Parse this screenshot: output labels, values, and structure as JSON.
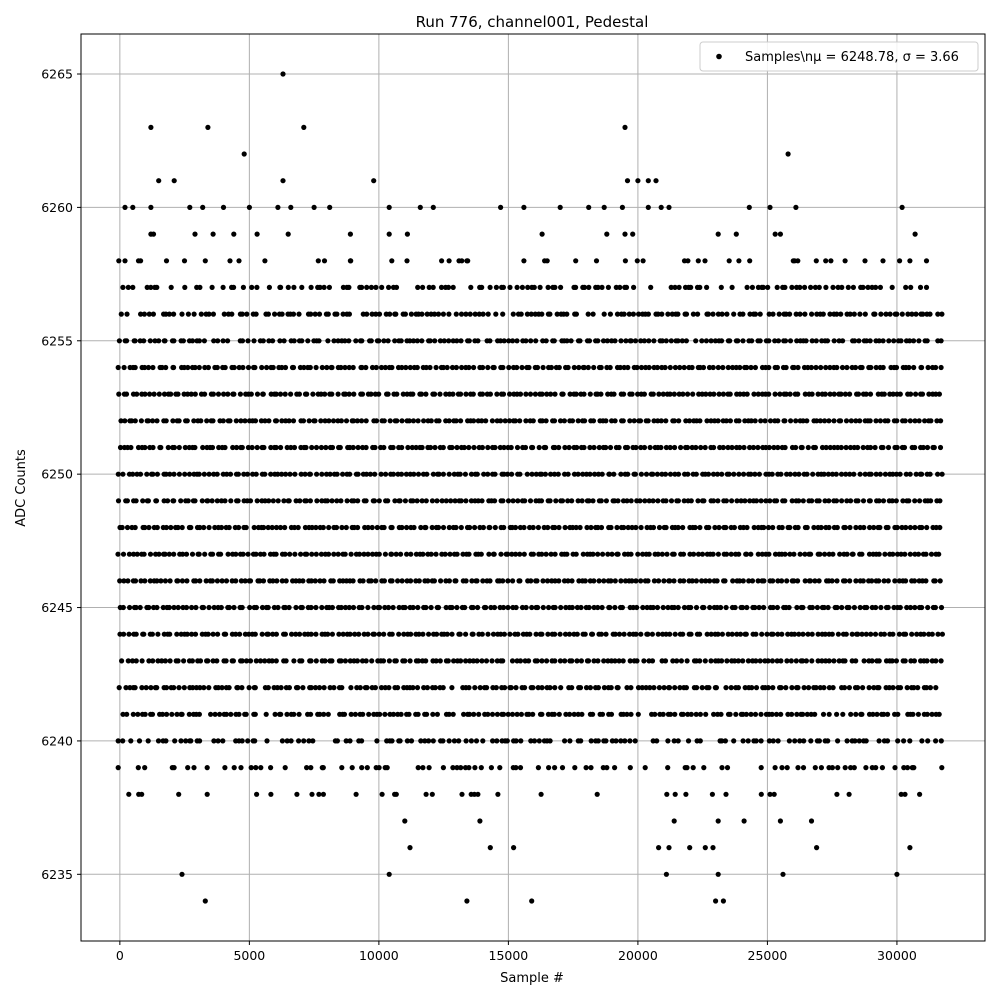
{
  "chart_data": {
    "type": "scatter",
    "title": "Run 776, channel001, Pedestal",
    "xlabel": "Sample #",
    "ylabel": "ADC Counts",
    "xlim": [
      -1500,
      33400
    ],
    "ylim": [
      6232.5,
      6266.5
    ],
    "xticks": [
      0,
      5000,
      10000,
      15000,
      20000,
      25000,
      30000
    ],
    "yticks": [
      6235,
      6240,
      6245,
      6250,
      6255,
      6260,
      6265
    ],
    "grid": true,
    "legend_position": "top-right",
    "marker_color": "#000000",
    "series": [
      {
        "name": "Samples\\n$\\mu$ = 6248.78, $\\sigma$ = 3.66",
        "legend_label": "Samples\\nμ = 6248.78, σ = 3.66",
        "n_samples": 31800,
        "mean": 6248.78,
        "sigma": 3.66,
        "bands": [
          {
            "y": 6238,
            "x_start": 0,
            "x_end": 31800,
            "density": 0.25
          },
          {
            "y": 6239,
            "x_start": 0,
            "x_end": 31800,
            "density": 0.45
          },
          {
            "y": 6240,
            "x_start": 0,
            "x_end": 31800,
            "density": 0.65
          },
          {
            "y": 6241,
            "x_start": 0,
            "x_end": 31800,
            "density": 0.9
          },
          {
            "y": 6242,
            "x_start": 0,
            "x_end": 31800,
            "density": 0.95
          },
          {
            "y": 6243,
            "x_start": 0,
            "x_end": 31800,
            "density": 0.97
          },
          {
            "y": 6244,
            "x_start": 0,
            "x_end": 31800,
            "density": 1.0
          },
          {
            "y": 6245,
            "x_start": 0,
            "x_end": 31800,
            "density": 1.0
          },
          {
            "y": 6246,
            "x_start": 0,
            "x_end": 31800,
            "density": 1.0
          },
          {
            "y": 6247,
            "x_start": 0,
            "x_end": 31800,
            "density": 1.0
          },
          {
            "y": 6248,
            "x_start": 0,
            "x_end": 31800,
            "density": 1.0
          },
          {
            "y": 6249,
            "x_start": 0,
            "x_end": 31800,
            "density": 1.0
          },
          {
            "y": 6250,
            "x_start": 0,
            "x_end": 31800,
            "density": 1.0
          },
          {
            "y": 6251,
            "x_start": 0,
            "x_end": 31800,
            "density": 1.0
          },
          {
            "y": 6252,
            "x_start": 0,
            "x_end": 31800,
            "density": 1.0
          },
          {
            "y": 6253,
            "x_start": 0,
            "x_end": 31800,
            "density": 1.0
          },
          {
            "y": 6254,
            "x_start": 0,
            "x_end": 31800,
            "density": 1.0
          },
          {
            "y": 6255,
            "x_start": 0,
            "x_end": 31800,
            "density": 0.97
          },
          {
            "y": 6256,
            "x_start": 0,
            "x_end": 31800,
            "density": 0.9
          },
          {
            "y": 6257,
            "x_start": 0,
            "x_end": 31800,
            "density": 0.65
          },
          {
            "y": 6258,
            "x_start": 0,
            "x_end": 31800,
            "density": 0.15
          }
        ],
        "outliers": [
          [
            2400,
            6235
          ],
          [
            3300,
            6234
          ],
          [
            10400,
            6235
          ],
          [
            13400,
            6234
          ],
          [
            15900,
            6234
          ],
          [
            21100,
            6235
          ],
          [
            23000,
            6234
          ],
          [
            23100,
            6235
          ],
          [
            23300,
            6234
          ],
          [
            25600,
            6235
          ],
          [
            30000,
            6235
          ],
          [
            11200,
            6236
          ],
          [
            14300,
            6236
          ],
          [
            15200,
            6236
          ],
          [
            20800,
            6236
          ],
          [
            21200,
            6236
          ],
          [
            22000,
            6236
          ],
          [
            22600,
            6236
          ],
          [
            22900,
            6236
          ],
          [
            26900,
            6236
          ],
          [
            30500,
            6236
          ],
          [
            11000,
            6237
          ],
          [
            13900,
            6237
          ],
          [
            21400,
            6237
          ],
          [
            23100,
            6237
          ],
          [
            24100,
            6237
          ],
          [
            25500,
            6237
          ],
          [
            26700,
            6237
          ],
          [
            200,
            6258
          ],
          [
            800,
            6258
          ],
          [
            1800,
            6258
          ],
          [
            3300,
            6258
          ],
          [
            4600,
            6258
          ],
          [
            5600,
            6258
          ],
          [
            7900,
            6258
          ],
          [
            8900,
            6258
          ],
          [
            10500,
            6258
          ],
          [
            13400,
            6258
          ],
          [
            15600,
            6258
          ],
          [
            16500,
            6258
          ],
          [
            17600,
            6258
          ],
          [
            18400,
            6258
          ],
          [
            20200,
            6258
          ],
          [
            21800,
            6258
          ],
          [
            23900,
            6258
          ],
          [
            26000,
            6258
          ],
          [
            28000,
            6258
          ],
          [
            30500,
            6258
          ],
          [
            1200,
            6259
          ],
          [
            1300,
            6259
          ],
          [
            2900,
            6259
          ],
          [
            3600,
            6259
          ],
          [
            4400,
            6259
          ],
          [
            5300,
            6259
          ],
          [
            6500,
            6259
          ],
          [
            8900,
            6259
          ],
          [
            10400,
            6259
          ],
          [
            11100,
            6259
          ],
          [
            16300,
            6259
          ],
          [
            18800,
            6259
          ],
          [
            19500,
            6259
          ],
          [
            19800,
            6259
          ],
          [
            23100,
            6259
          ],
          [
            23800,
            6259
          ],
          [
            25300,
            6259
          ],
          [
            25500,
            6259
          ],
          [
            30700,
            6259
          ],
          [
            200,
            6260
          ],
          [
            500,
            6260
          ],
          [
            1200,
            6260
          ],
          [
            2700,
            6260
          ],
          [
            3200,
            6260
          ],
          [
            4000,
            6260
          ],
          [
            5000,
            6260
          ],
          [
            6100,
            6260
          ],
          [
            6600,
            6260
          ],
          [
            7500,
            6260
          ],
          [
            8100,
            6260
          ],
          [
            10400,
            6260
          ],
          [
            11600,
            6260
          ],
          [
            12100,
            6260
          ],
          [
            14700,
            6260
          ],
          [
            15600,
            6260
          ],
          [
            17000,
            6260
          ],
          [
            18100,
            6260
          ],
          [
            18700,
            6260
          ],
          [
            19400,
            6260
          ],
          [
            20400,
            6260
          ],
          [
            20900,
            6260
          ],
          [
            21200,
            6260
          ],
          [
            24300,
            6260
          ],
          [
            25100,
            6260
          ],
          [
            26100,
            6260
          ],
          [
            30200,
            6260
          ],
          [
            1500,
            6261
          ],
          [
            2100,
            6261
          ],
          [
            6300,
            6261
          ],
          [
            9800,
            6261
          ],
          [
            19600,
            6261
          ],
          [
            20000,
            6261
          ],
          [
            20400,
            6261
          ],
          [
            20700,
            6261
          ],
          [
            4800,
            6262
          ],
          [
            25800,
            6262
          ],
          [
            1200,
            6263
          ],
          [
            3400,
            6263
          ],
          [
            7100,
            6263
          ],
          [
            19500,
            6263
          ],
          [
            6300,
            6265
          ]
        ]
      }
    ]
  }
}
